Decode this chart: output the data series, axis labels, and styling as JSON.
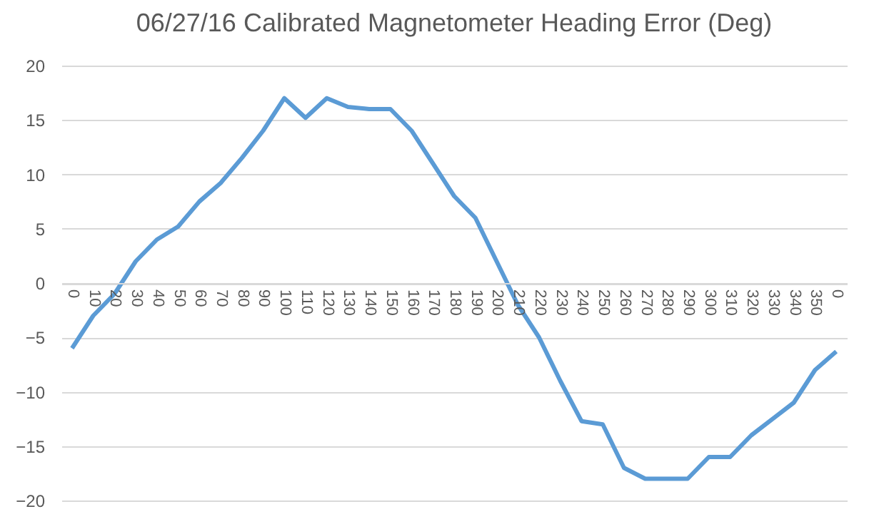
{
  "chart_data": {
    "type": "line",
    "title": "06/27/16 Calibrated Magnetometer Heading Error (Deg)",
    "categories": [
      "0",
      "10",
      "20",
      "30",
      "40",
      "50",
      "60",
      "70",
      "80",
      "90",
      "100",
      "110",
      "120",
      "130",
      "140",
      "150",
      "160",
      "170",
      "180",
      "190",
      "200",
      "210",
      "220",
      "230",
      "240",
      "250",
      "260",
      "270",
      "280",
      "290",
      "300",
      "310",
      "320",
      "330",
      "340",
      "350",
      "0"
    ],
    "series": [
      {
        "color": "#5b9bd5",
        "values": [
          -6,
          -3,
          -1,
          2,
          4,
          5.2,
          7.5,
          9.2,
          11.5,
          14,
          17,
          15.2,
          17,
          16.2,
          16,
          16,
          14,
          11,
          8,
          6,
          2,
          -2,
          -5,
          -9,
          -12.7,
          -13,
          -17,
          -18,
          -18,
          -18,
          -16,
          -16,
          -14,
          -12.5,
          -11,
          -8,
          -6.3
        ]
      }
    ],
    "ylim": [
      -20,
      20
    ],
    "yticks": [
      -20,
      -15,
      -10,
      -5,
      0,
      5,
      10,
      15,
      20
    ],
    "grid": "y",
    "marker": "none",
    "line_style": "solid"
  }
}
